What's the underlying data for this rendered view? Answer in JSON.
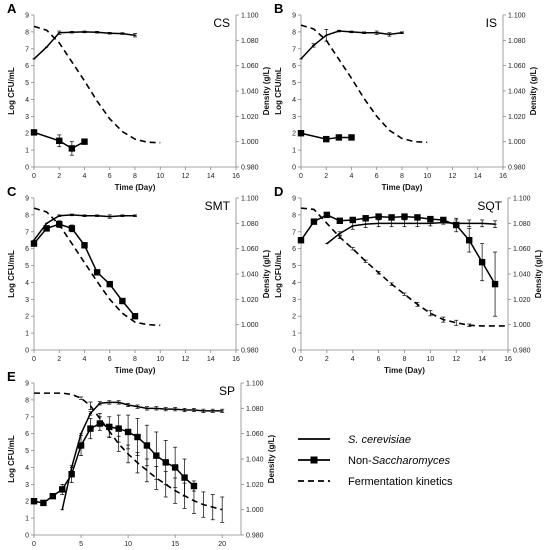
{
  "chart_data": [
    {
      "type": "line",
      "panel_label": "A",
      "title": "CS",
      "xlabel": "Time (Day)",
      "ylabel": "Log CFU/mL",
      "y2label": "Density (g/L)",
      "xlim": [
        0,
        16
      ],
      "xticks": [
        0,
        2,
        4,
        6,
        8,
        10,
        12,
        14,
        16
      ],
      "ylim": [
        0,
        9
      ],
      "yticks": [
        0,
        1,
        2,
        3,
        4,
        5,
        6,
        7,
        8,
        9
      ],
      "y2lim": [
        0.98,
        1.1
      ],
      "y2ticks": [
        "0.980",
        "1.000",
        "1.020",
        "1.040",
        "1.060",
        "1.080",
        "1.100"
      ],
      "series": [
        {
          "name": "S. cerevisiae",
          "style": "solid",
          "axis": "left",
          "x": [
            0,
            1,
            2,
            3,
            4,
            5,
            6,
            7,
            8
          ],
          "y": [
            6.4,
            7.1,
            7.95,
            7.98,
            8.0,
            7.98,
            7.92,
            7.9,
            7.8
          ],
          "err": [
            0,
            0,
            0.1,
            0.05,
            0.05,
            0.05,
            0.05,
            0.05,
            0.1
          ]
        },
        {
          "name": "Non-Saccharomyces",
          "style": "solid-square",
          "axis": "left",
          "x": [
            0,
            2,
            3,
            4
          ],
          "y": [
            2.05,
            1.55,
            1.1,
            1.5
          ],
          "err": [
            0,
            0.35,
            0.4,
            0.1
          ]
        },
        {
          "name": "Fermentation kinetics",
          "style": "dashed",
          "axis": "right",
          "x": [
            0,
            1,
            2,
            3,
            4,
            5,
            6,
            7,
            8,
            9,
            10
          ],
          "y": [
            1.091,
            1.088,
            1.078,
            1.063,
            1.048,
            1.032,
            1.018,
            1.008,
            1.002,
            0.9995,
            0.9992
          ]
        }
      ]
    },
    {
      "type": "line",
      "panel_label": "B",
      "title": "IS",
      "xlabel": "Time (Day)",
      "ylabel": "Log CFU/mL",
      "y2label": "Density (g/L)",
      "xlim": [
        0,
        16
      ],
      "xticks": [
        0,
        2,
        4,
        6,
        8,
        10,
        12,
        14,
        16
      ],
      "ylim": [
        0,
        9
      ],
      "yticks": [
        0,
        1,
        2,
        3,
        4,
        5,
        6,
        7,
        8,
        9
      ],
      "y2lim": [
        0.98,
        1.1
      ],
      "y2ticks": [
        "0.980",
        "1.000",
        "1.020",
        "1.040",
        "1.060",
        "1.080",
        "1.100"
      ],
      "series": [
        {
          "name": "S. cerevisiae",
          "style": "solid",
          "axis": "left",
          "x": [
            0,
            1,
            2,
            3,
            4,
            5,
            6,
            7,
            8
          ],
          "y": [
            6.4,
            7.2,
            7.8,
            8.05,
            8.0,
            7.95,
            7.95,
            7.85,
            7.95
          ],
          "err": [
            0,
            0.1,
            0.35,
            0.05,
            0.05,
            0.05,
            0.1,
            0.1,
            0.05
          ]
        },
        {
          "name": "Non-Saccharomyces",
          "style": "solid-square",
          "axis": "left",
          "x": [
            0,
            2,
            3,
            4
          ],
          "y": [
            2.0,
            1.65,
            1.75,
            1.75
          ],
          "err": [
            0,
            0.1,
            0.05,
            0.05
          ]
        },
        {
          "name": "Fermentation kinetics",
          "style": "dashed",
          "axis": "right",
          "x": [
            0,
            1,
            2,
            3,
            4,
            5,
            6,
            7,
            8,
            9,
            10
          ],
          "y": [
            1.092,
            1.089,
            1.08,
            1.065,
            1.05,
            1.034,
            1.02,
            1.009,
            1.0025,
            1.0,
            0.9995
          ]
        }
      ]
    },
    {
      "type": "line",
      "panel_label": "C",
      "title": "SMT",
      "xlabel": "Time (Day)",
      "ylabel": "Log CFU/mL",
      "y2label": "Density (g/L)",
      "xlim": [
        0,
        16
      ],
      "xticks": [
        0,
        2,
        4,
        6,
        8,
        10,
        12,
        14,
        16
      ],
      "ylim": [
        0,
        9
      ],
      "yticks": [
        0,
        1,
        2,
        3,
        4,
        5,
        6,
        7,
        8,
        9
      ],
      "y2lim": [
        0.98,
        1.1
      ],
      "y2ticks": [
        "0.980",
        "1.000",
        "1.020",
        "1.040",
        "1.060",
        "1.080",
        "1.100"
      ],
      "series": [
        {
          "name": "S. cerevisiae",
          "style": "solid",
          "axis": "left",
          "x": [
            0,
            1,
            2,
            3,
            4,
            5,
            6,
            7,
            8
          ],
          "y": [
            6.5,
            7.5,
            7.95,
            8.0,
            7.95,
            7.95,
            7.9,
            7.95,
            7.95
          ],
          "err": [
            0,
            0,
            0.05,
            0.05,
            0.05,
            0.05,
            0.1,
            0.05,
            0.05
          ]
        },
        {
          "name": "Non-Saccharomyces",
          "style": "solid-square",
          "axis": "left",
          "x": [
            0,
            1,
            2,
            3,
            4,
            5,
            6,
            7,
            8
          ],
          "y": [
            6.3,
            7.2,
            7.45,
            7.2,
            6.2,
            4.6,
            3.9,
            2.9,
            2.0
          ],
          "err": [
            0,
            0.1,
            0.2,
            0.2,
            0.1,
            0.1,
            0.1,
            0.1,
            0.1
          ]
        },
        {
          "name": "Fermentation kinetics",
          "style": "dashed",
          "axis": "right",
          "x": [
            0,
            1,
            2,
            3,
            4,
            5,
            6,
            7,
            8,
            9,
            10
          ],
          "y": [
            1.092,
            1.089,
            1.079,
            1.064,
            1.049,
            1.034,
            1.02,
            1.009,
            1.002,
            1.0,
            0.9995
          ]
        }
      ]
    },
    {
      "type": "line",
      "panel_label": "D",
      "title": "SQT",
      "xlabel": "Time (Day)",
      "ylabel": "Log CFU/mL",
      "y2label": "Density (g/L)",
      "xlim": [
        0,
        16
      ],
      "xticks": [
        0,
        2,
        4,
        6,
        8,
        10,
        12,
        14,
        16
      ],
      "ylim": [
        0,
        9
      ],
      "yticks": [
        0,
        1,
        2,
        3,
        4,
        5,
        6,
        7,
        8,
        9
      ],
      "y2lim": [
        0.98,
        1.1
      ],
      "y2ticks": [
        "0.980",
        "1.000",
        "1.020",
        "1.040",
        "1.060",
        "1.080",
        "1.100"
      ],
      "series": [
        {
          "name": "S. cerevisiae",
          "style": "solid",
          "axis": "left",
          "x": [
            2,
            3,
            4,
            5,
            6,
            7,
            8,
            9,
            10,
            11,
            12,
            13,
            14,
            15
          ],
          "y": [
            6.3,
            6.9,
            7.35,
            7.45,
            7.5,
            7.5,
            7.5,
            7.5,
            7.5,
            7.55,
            7.5,
            7.5,
            7.5,
            7.45
          ],
          "err": [
            0,
            0.1,
            0.2,
            0.2,
            0.2,
            0.2,
            0.2,
            0.2,
            0.15,
            0.1,
            0.2,
            0.2,
            0.2,
            0.2
          ]
        },
        {
          "name": "Non-Saccharomyces",
          "style": "solid-square",
          "axis": "left",
          "x": [
            0,
            1,
            2,
            3,
            4,
            5,
            6,
            7,
            8,
            9,
            10,
            11,
            12,
            13,
            14,
            15
          ],
          "y": [
            6.5,
            7.6,
            8.0,
            7.65,
            7.7,
            7.8,
            7.9,
            7.85,
            7.9,
            7.85,
            7.75,
            7.7,
            7.4,
            6.5,
            5.2,
            3.9
          ],
          "err": [
            0,
            0.1,
            0.1,
            0.1,
            0.1,
            0.1,
            0.1,
            0.1,
            0.1,
            0.1,
            0.1,
            0.1,
            0.4,
            0.7,
            1.1,
            1.9
          ]
        },
        {
          "name": "Fermentation kinetics",
          "style": "dashed",
          "axis": "right",
          "x": [
            0,
            1,
            2,
            3,
            4,
            5,
            6,
            7,
            8,
            9,
            10,
            11,
            12,
            13,
            14,
            15,
            16
          ],
          "y": [
            1.092,
            1.091,
            1.08,
            1.069,
            1.06,
            1.05,
            1.041,
            1.032,
            1.024,
            1.016,
            1.009,
            1.004,
            1.0015,
            0.9995,
            0.999,
            0.999,
            0.999
          ],
          "err": [
            0,
            0,
            0,
            0.001,
            0.001,
            0.001,
            0.001,
            0.001,
            0.001,
            0.0015,
            0.002,
            0.002,
            0.002,
            0.001,
            0,
            0,
            0
          ]
        }
      ]
    },
    {
      "type": "line",
      "panel_label": "E",
      "title": "SP",
      "xlabel": "Time (Day)",
      "ylabel": "Log CFU/mL",
      "y2label": "Density (g/L)",
      "xlim": [
        0,
        22
      ],
      "xticks": [
        0,
        5,
        10,
        15,
        20
      ],
      "ylim": [
        0,
        9
      ],
      "yticks": [
        0,
        1,
        2,
        3,
        4,
        5,
        6,
        7,
        8,
        9
      ],
      "y2lim": [
        0.98,
        1.1
      ],
      "y2ticks": [
        "0.980",
        "1.000",
        "1.020",
        "1.040",
        "1.060",
        "1.080",
        "1.100"
      ],
      "series": [
        {
          "name": "S. cerevisiae",
          "style": "solid",
          "axis": "left",
          "x": [
            3,
            4,
            5,
            6,
            7,
            8,
            9,
            10,
            11,
            12,
            13,
            14,
            15,
            16,
            17,
            18,
            19,
            20
          ],
          "y": [
            1.5,
            4.0,
            6.0,
            7.2,
            7.8,
            7.85,
            7.85,
            7.7,
            7.6,
            7.5,
            7.5,
            7.45,
            7.45,
            7.4,
            7.4,
            7.35,
            7.35,
            7.35
          ],
          "err": [
            0,
            0,
            0,
            0.1,
            0.1,
            0.1,
            0.1,
            0.1,
            0.1,
            0.1,
            0.1,
            0.1,
            0.1,
            0.1,
            0.1,
            0.1,
            0.1,
            0.1
          ]
        },
        {
          "name": "Non-Saccharomyces",
          "style": "solid-square",
          "axis": "left",
          "x": [
            0,
            1,
            2,
            3,
            4,
            5,
            6,
            7,
            8,
            9,
            10,
            11,
            12,
            13,
            14,
            15,
            16,
            17
          ],
          "y": [
            2.0,
            1.9,
            2.3,
            2.7,
            3.6,
            5.3,
            6.3,
            6.6,
            6.4,
            6.3,
            6.1,
            5.8,
            5.3,
            4.7,
            4.3,
            4.0,
            3.4,
            2.9
          ],
          "err": [
            0,
            0.1,
            0.1,
            0.3,
            0.5,
            0.6,
            0.6,
            0.4,
            0.6,
            0.8,
            1.0,
            1.1,
            1.2,
            1.4,
            1.3,
            1.2,
            1.1,
            0.3
          ]
        },
        {
          "name": "Fermentation kinetics",
          "style": "dashed",
          "axis": "right",
          "x": [
            0,
            1,
            2,
            3,
            4,
            5,
            6,
            7,
            8,
            9,
            10,
            11,
            12,
            13,
            14,
            15,
            16,
            17,
            18,
            19,
            20
          ],
          "y": [
            1.092,
            1.092,
            1.092,
            1.092,
            1.091,
            1.088,
            1.082,
            1.072,
            1.062,
            1.052,
            1.044,
            1.037,
            1.031,
            1.025,
            1.02,
            1.015,
            1.011,
            1.007,
            1.004,
            1.002,
            1.0
          ],
          "err": [
            0,
            0,
            0,
            0,
            0,
            0.001,
            0.003,
            0.004,
            0.005,
            0.006,
            0.007,
            0.008,
            0.009,
            0.009,
            0.01,
            0.01,
            0.01,
            0.01,
            0.01,
            0.01,
            0.01
          ]
        }
      ]
    }
  ],
  "legend": {
    "items": [
      {
        "label": "S. cerevisiae",
        "italic": true,
        "style": "solid"
      },
      {
        "label_parts": [
          "Non-",
          "Saccharomyces"
        ],
        "italic_parts": [
          false,
          true
        ],
        "style": "solid-square"
      },
      {
        "label": "Fermentation kinetics",
        "italic": false,
        "style": "dashed"
      }
    ]
  },
  "colors": {
    "line": "#000000",
    "axis": "#888888",
    "text": "#000000"
  }
}
